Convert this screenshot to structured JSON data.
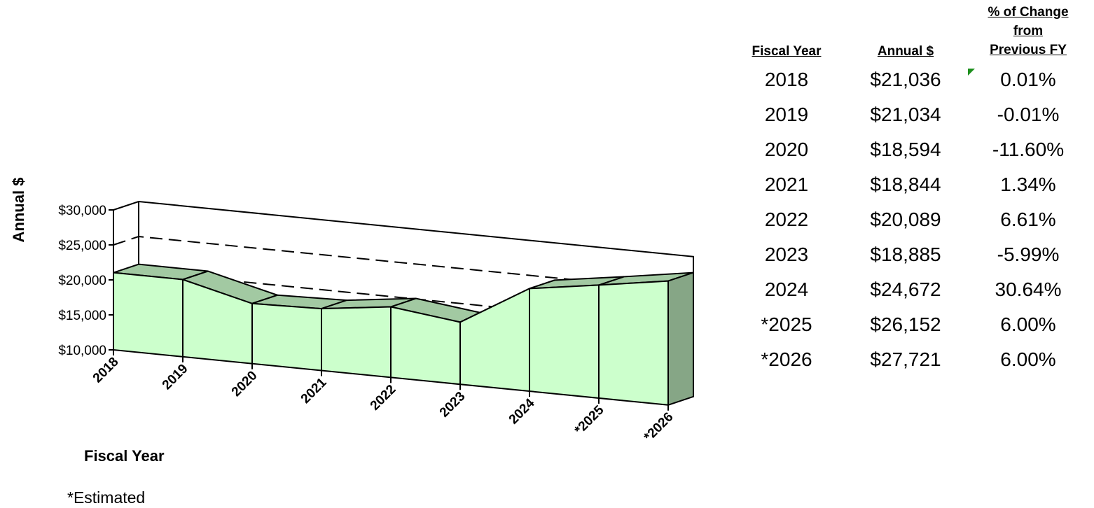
{
  "chart_data": {
    "type": "area",
    "categories": [
      "2018",
      "2019",
      "2020",
      "2021",
      "2022",
      "2023",
      "2024",
      "*2025",
      "*2026"
    ],
    "values": [
      21036,
      21034,
      18594,
      18844,
      20089,
      18885,
      24672,
      26152,
      27721
    ],
    "ylabel": "Annual $",
    "xlabel": "Fiscal Year",
    "ylim": [
      10000,
      30000
    ],
    "yticks": [
      "$10,000",
      "$15,000",
      "$20,000",
      "$25,000",
      "$30,000"
    ],
    "grid": true,
    "colors": {
      "area_front": "#ccffcc",
      "area_top": "#a2c9a2",
      "area_side": "#86a686",
      "stroke": "#000000"
    }
  },
  "table": {
    "headers": [
      "Fiscal Year",
      "Annual $"
    ],
    "pct_header": [
      "% of Change",
      "from",
      "Previous FY"
    ],
    "rows": [
      [
        "2018",
        "$21,036",
        "0.01%"
      ],
      [
        "2019",
        "$21,034",
        "-0.01%"
      ],
      [
        "2020",
        "$18,594",
        "-11.60%"
      ],
      [
        "2021",
        "$18,844",
        "1.34%"
      ],
      [
        "2022",
        "$20,089",
        "6.61%"
      ],
      [
        "2023",
        "$18,885",
        "-5.99%"
      ],
      [
        "2024",
        "$24,672",
        "30.64%"
      ],
      [
        "*2025",
        "$26,152",
        "6.00%"
      ],
      [
        "*2026",
        "$27,721",
        "6.00%"
      ]
    ]
  },
  "footnote": "*Estimated"
}
